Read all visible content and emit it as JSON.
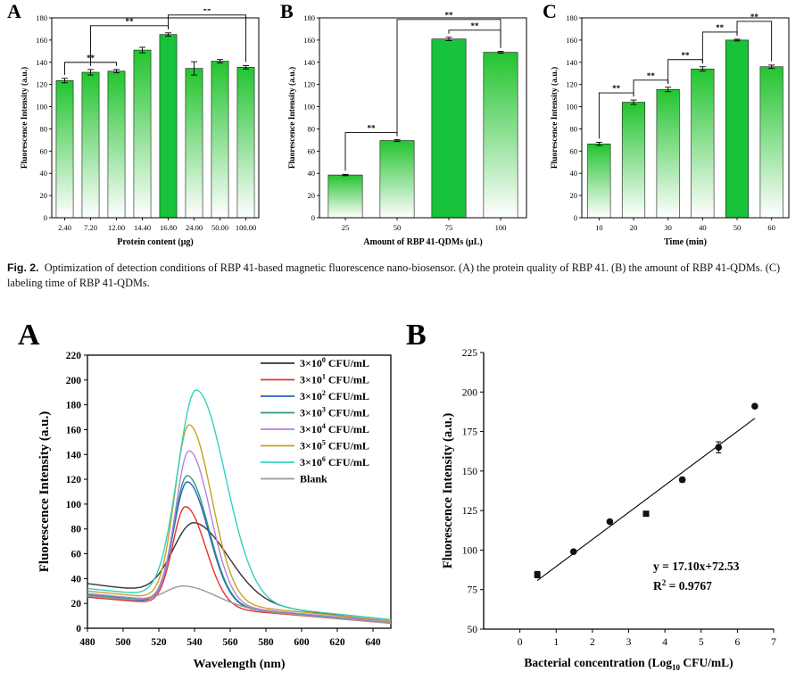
{
  "figure2": {
    "caption_label": "Fig. 2.",
    "caption_text": "Optimization of detection conditions of RBP 41-based magnetic fluorescence nano-biosensor. (A) the protein quality of RBP 41. (B) the amount of RBP 41-QDMs. (C) labeling time of RBP 41-QDMs."
  },
  "colors": {
    "bar_green": "#22c42f",
    "bar_highlight": "#18c23a",
    "axis": "#000000"
  },
  "chart_data": [
    {
      "id": "fig2A",
      "panel_label": "A",
      "type": "bar",
      "title": "",
      "xlabel": "Protein content (μg)",
      "ylabel": "Fluorescence Intensity (a.u.)",
      "categories": [
        "2.40",
        "7.20",
        "12.00",
        "14.40",
        "16.80",
        "24.00",
        "50.00",
        "100.00"
      ],
      "values": [
        123.5,
        131,
        132,
        151,
        165,
        134.5,
        141,
        135.5
      ],
      "errors": [
        2,
        2.5,
        1.5,
        2.5,
        1.5,
        6,
        1.5,
        1.5
      ],
      "highlight_index": 4,
      "ylim": [
        0,
        180
      ],
      "yticks": [
        0,
        20,
        40,
        60,
        80,
        100,
        120,
        140,
        160,
        180
      ],
      "significance": [
        {
          "from": 0,
          "to": 2,
          "label": "**"
        },
        {
          "from": 1,
          "to": 4,
          "label": "**"
        },
        {
          "from": 4,
          "to": 7,
          "label": "**"
        }
      ]
    },
    {
      "id": "fig2B",
      "panel_label": "B",
      "type": "bar",
      "title": "",
      "xlabel": "Amount of RBP 41-QDMs (μL)",
      "ylabel": "Fluorescence Intensity (a.u.)",
      "categories": [
        "25",
        "50",
        "75",
        "100"
      ],
      "values": [
        38.5,
        69.5,
        161,
        149
      ],
      "errors": [
        0.6,
        0.8,
        1.5,
        0.8
      ],
      "highlight_index": 2,
      "ylim": [
        0,
        180
      ],
      "yticks": [
        0,
        20,
        40,
        60,
        80,
        100,
        120,
        140,
        160,
        180
      ],
      "significance": [
        {
          "from": 0,
          "to": 1,
          "label": "**"
        },
        {
          "from": 2,
          "to": 3,
          "label": "**"
        },
        {
          "from": 1,
          "to": 3,
          "label": "**"
        }
      ]
    },
    {
      "id": "fig2C",
      "panel_label": "C",
      "type": "bar",
      "title": "",
      "xlabel": "Time (min)",
      "ylabel": "Fluorescence Intensity (a.u.)",
      "categories": [
        "10",
        "20",
        "30",
        "40",
        "50",
        "60"
      ],
      "values": [
        66.5,
        104,
        115.5,
        134,
        160,
        136
      ],
      "errors": [
        1.5,
        2,
        2,
        2,
        0.8,
        1.5
      ],
      "highlight_index": 4,
      "ylim": [
        0,
        180
      ],
      "yticks": [
        0,
        20,
        40,
        60,
        80,
        100,
        120,
        140,
        160,
        180
      ],
      "significance": [
        {
          "from": 0,
          "to": 1,
          "label": "**"
        },
        {
          "from": 1,
          "to": 2,
          "label": "**"
        },
        {
          "from": 2,
          "to": 3,
          "label": "**"
        },
        {
          "from": 3,
          "to": 4,
          "label": "**"
        },
        {
          "from": 4,
          "to": 5,
          "label": "**"
        }
      ]
    },
    {
      "id": "fig3A",
      "panel_label": "A",
      "type": "line",
      "title": "",
      "xlabel": "Wavelength (nm)",
      "ylabel": "Fluorescence Intensity (a.u.)",
      "xlim": [
        480,
        650
      ],
      "ylim": [
        0,
        220
      ],
      "xticks": [
        480,
        500,
        520,
        540,
        560,
        580,
        600,
        620,
        640
      ],
      "yticks": [
        0,
        20,
        40,
        60,
        80,
        100,
        120,
        140,
        160,
        180,
        200,
        220
      ],
      "series": [
        {
          "name": "3×10⁰ CFU/mL",
          "base": "3×10",
          "exp": "0",
          "unit": " CFU/mL",
          "color": "#333333",
          "start": 36,
          "end": 5,
          "peak": 85,
          "center": 540,
          "width": 15
        },
        {
          "name": "3×10¹ CFU/mL",
          "base": "3×10",
          "exp": "1",
          "unit": " CFU/mL",
          "color": "#e8312f",
          "start": 25,
          "end": 4,
          "peak": 98,
          "center": 535,
          "width": 9
        },
        {
          "name": "3×10² CFU/mL",
          "base": "3×10",
          "exp": "2",
          "unit": " CFU/mL",
          "color": "#2660c8",
          "start": 26,
          "end": 5,
          "peak": 118,
          "center": 536,
          "width": 9.5
        },
        {
          "name": "3×10³ CFU/mL",
          "base": "3×10",
          "exp": "3",
          "unit": " CFU/mL",
          "color": "#2a9a78",
          "start": 27,
          "end": 5,
          "peak": 123,
          "center": 536,
          "width": 9.5
        },
        {
          "name": "3×10⁴ CFU/mL",
          "base": "3×10",
          "exp": "4",
          "unit": " CFU/mL",
          "color": "#b483e0",
          "start": 28,
          "end": 5,
          "peak": 143,
          "center": 537,
          "width": 9.5
        },
        {
          "name": "3×10⁵ CFU/mL",
          "base": "3×10",
          "exp": "5",
          "unit": " CFU/mL",
          "color": "#c9a21b",
          "start": 30,
          "end": 6,
          "peak": 164,
          "center": 537,
          "width": 10
        },
        {
          "name": "3×10⁶ CFU/mL",
          "base": "3×10",
          "exp": "6",
          "unit": " CFU/mL",
          "color": "#35d0c2",
          "start": 32,
          "end": 7,
          "peak": 192,
          "center": 541,
          "width": 13
        },
        {
          "name": "Blank",
          "base": "Blank",
          "exp": "",
          "unit": "",
          "color": "#999999",
          "start": 26,
          "end": 4,
          "peak": 34,
          "center": 535,
          "width": 14
        }
      ]
    },
    {
      "id": "fig3B",
      "panel_label": "B",
      "type": "scatter",
      "title": "",
      "xlabel_main": "Bacterial concentration (Log",
      "xlabel_sub": "10",
      "xlabel_end": " CFU/mL)",
      "ylabel": "Fluorescence Intensity (a.u.)",
      "xlim": [
        -1,
        7
      ],
      "ylim": [
        50,
        225
      ],
      "xticks": [
        0,
        1,
        2,
        3,
        4,
        5,
        6,
        7
      ],
      "yticks": [
        50,
        75,
        100,
        125,
        150,
        175,
        200,
        225
      ],
      "x": [
        0.48,
        1.48,
        2.48,
        3.48,
        4.48,
        5.48,
        6.48
      ],
      "y": [
        84.5,
        99,
        118,
        123,
        144.5,
        165,
        191
      ],
      "errors": [
        2,
        1,
        1,
        1,
        1.5,
        3.5,
        1
      ],
      "fit": {
        "slope": 17.1,
        "intercept": 72.53,
        "x_range": [
          0.48,
          6.48
        ]
      },
      "equation": "y = 17.10x+72.53",
      "r2_prefix": "R",
      "r2_sup": "2",
      "r2_value": " = 0.9767"
    }
  ]
}
